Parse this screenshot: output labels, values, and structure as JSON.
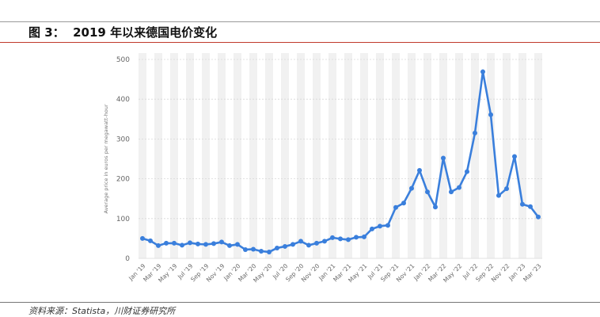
{
  "figure": {
    "title": "图 3：  2019 年以来德国电价变化",
    "source": "资料来源：Statista，川财证券研究所"
  },
  "colors": {
    "line": "#3a7fdc",
    "band": "#f1f1f1",
    "grid": "#d8d8d8",
    "title_rule": "#c0392b"
  },
  "chart_data": {
    "type": "line",
    "title": "",
    "xlabel": "",
    "ylabel": "Average price in euros per megawatt-hour",
    "ylim": [
      0,
      500
    ],
    "yticks": [
      0,
      100,
      200,
      300,
      400,
      500
    ],
    "grid": true,
    "categories": [
      "Jan '19",
      "Feb '19",
      "Mar '19",
      "Apr '19",
      "May '19",
      "Jun '19",
      "Jul '19",
      "Aug '19",
      "Sep '19",
      "Oct '19",
      "Nov '19",
      "Dec '19",
      "Jan '20",
      "Feb '20",
      "Mar '20",
      "Apr '20",
      "May '20",
      "Jun '20",
      "Jul '20",
      "Aug '20",
      "Sep '20",
      "Oct '20",
      "Nov '20",
      "Dec '20",
      "Jan '21",
      "Feb '21",
      "Mar '21",
      "Apr '21",
      "May '21",
      "Jun '21",
      "Jul '21",
      "Aug '21",
      "Sep '21",
      "Oct '21",
      "Nov '21",
      "Dec '21",
      "Jan '22",
      "Feb '22",
      "Mar '22",
      "Apr '22",
      "May '22",
      "Jun '22",
      "Jul '22",
      "Aug '22",
      "Sep '22",
      "Oct '22",
      "Nov '22",
      "Dec '22",
      "Jan '23",
      "Feb '23",
      "Mar '23"
    ],
    "tick_labels": [
      "Jan '19",
      "Mar '19",
      "May '19",
      "Jul '19",
      "Sep '19",
      "Nov '19",
      "Jan '20",
      "Mar '20",
      "May '20",
      "Jul '20",
      "Sep '20",
      "Nov '20",
      "Jan '21",
      "Mar '21",
      "May '21",
      "Jul '21",
      "Sep '21",
      "Nov '21",
      "Jan '22",
      "Mar '22",
      "May '22",
      "Jul '22",
      "Sep '22",
      "Nov '22",
      "Jan '23",
      "Mar '23"
    ],
    "series": [
      {
        "values": [
          50,
          44,
          32,
          38,
          38,
          33,
          39,
          36,
          35,
          37,
          41,
          32,
          35,
          22,
          23,
          18,
          16,
          26,
          30,
          35,
          43,
          33,
          38,
          43,
          52,
          49,
          47,
          53,
          54,
          74,
          81,
          83,
          128,
          139,
          176,
          221,
          167,
          129,
          252,
          167,
          178,
          218,
          315,
          469,
          361,
          158,
          175,
          256,
          136,
          130,
          104
        ]
      }
    ]
  }
}
